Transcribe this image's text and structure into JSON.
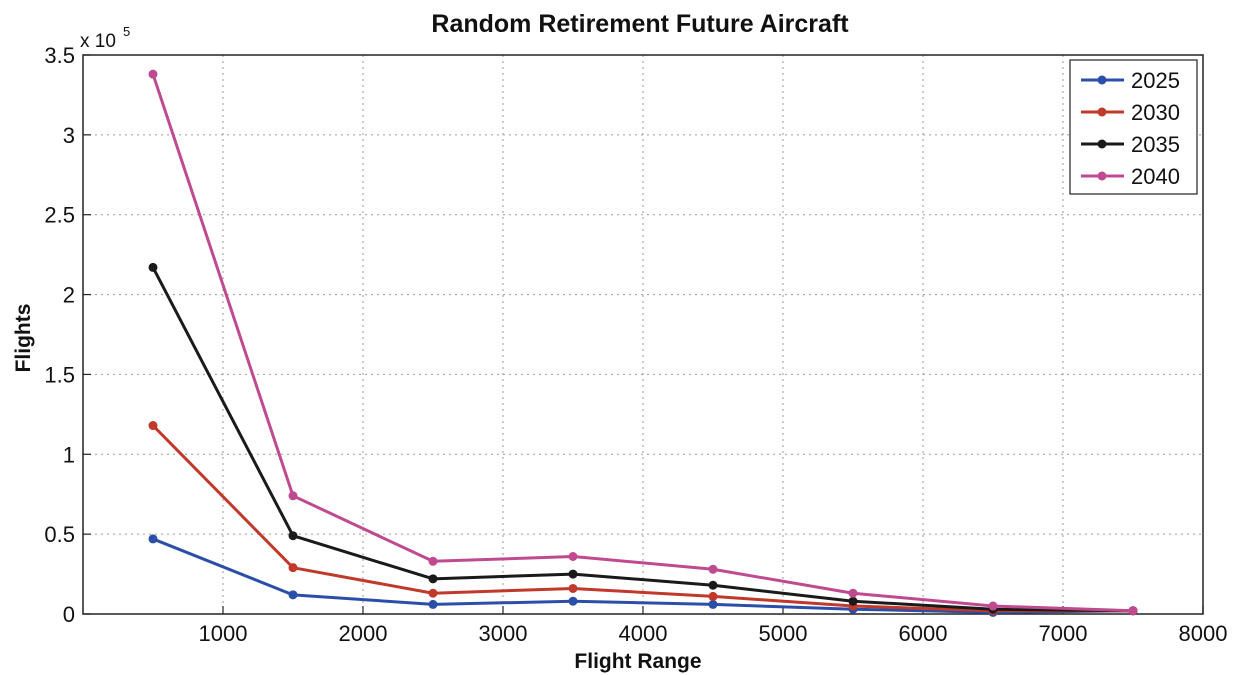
{
  "chart_data": {
    "type": "line",
    "title": "Random Retirement Future Aircraft",
    "xlabel": "Flight Range",
    "ylabel": "Flights",
    "y_multiplier_label": "x 10",
    "y_multiplier_exponent": "5",
    "x": [
      500,
      1500,
      2500,
      3500,
      4500,
      5500,
      6500,
      7500
    ],
    "xlim": [
      0,
      8000
    ],
    "ylim": [
      0,
      3.5
    ],
    "xticks": [
      1000,
      2000,
      3000,
      4000,
      5000,
      6000,
      7000,
      8000
    ],
    "xtick_labels": [
      "1000",
      "2000",
      "3000",
      "4000",
      "5000",
      "6000",
      "7000",
      "8000"
    ],
    "yticks": [
      0,
      0.5,
      1,
      1.5,
      2,
      2.5,
      3,
      3.5
    ],
    "ytick_labels": [
      "0",
      "0.5",
      "1",
      "1.5",
      "2",
      "2.5",
      "3",
      "3.5"
    ],
    "grid": true,
    "legend_position": "top-right",
    "series": [
      {
        "name": "2025",
        "color": "#2b4fa8",
        "values": [
          0.47,
          0.12,
          0.06,
          0.08,
          0.06,
          0.03,
          0.01,
          0.02
        ]
      },
      {
        "name": "2030",
        "color": "#c0392b",
        "values": [
          1.18,
          0.29,
          0.13,
          0.16,
          0.11,
          0.05,
          0.02,
          0.02
        ]
      },
      {
        "name": "2035",
        "color": "#1a1a1a",
        "values": [
          2.17,
          0.49,
          0.22,
          0.25,
          0.18,
          0.08,
          0.03,
          0.02
        ]
      },
      {
        "name": "2040",
        "color": "#c04a90",
        "values": [
          3.38,
          0.74,
          0.33,
          0.36,
          0.28,
          0.13,
          0.05,
          0.02
        ]
      }
    ]
  }
}
